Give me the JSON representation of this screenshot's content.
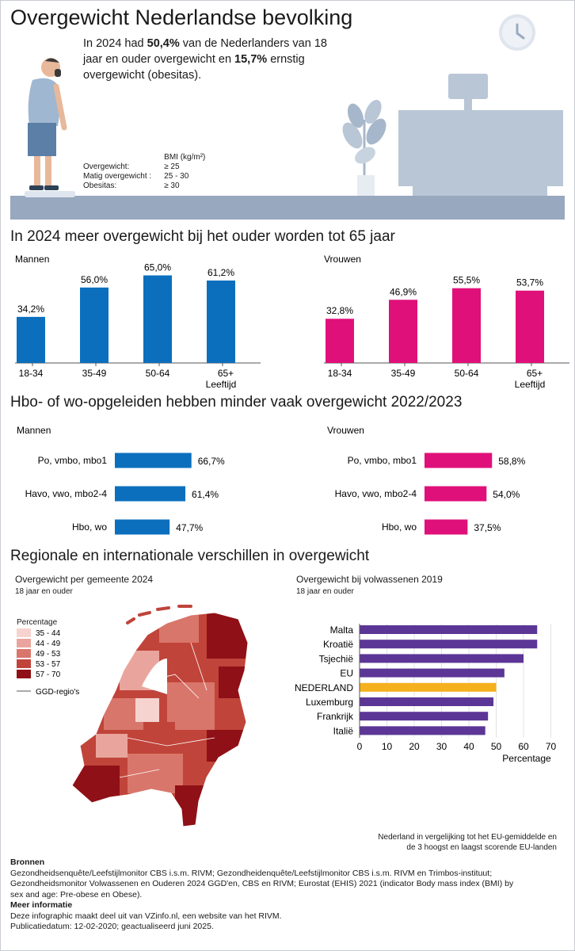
{
  "header": {
    "title": "Overgewicht Nederlandse bevolking",
    "intro_pre": "In 2024 had ",
    "intro_val1": "50,4%",
    "intro_mid": " van de Nederlanders van 18 jaar en ouder overgewicht en ",
    "intro_val2": "15,7%",
    "intro_post": " ernstig overgewicht (obesitas).",
    "bmi_header": "BMI (kg/m²)",
    "bmi_rows": [
      {
        "label": "Overgewicht:",
        "value": "≥ 25"
      },
      {
        "label": "Matig overgewicht :",
        "value": "25 - 30"
      },
      {
        "label": "Obesitas:",
        "value": "≥ 30"
      }
    ]
  },
  "section_age": {
    "title": "In 2024 meer overgewicht bij het ouder worden tot 65 jaar",
    "axis_suffix": "Leeftijd"
  },
  "section_edu": {
    "title": "Hbo- of wo-opgeleiden hebben minder vaak overgewicht 2022/2023"
  },
  "section_region": {
    "title": "Regionale en internationale verschillen in overgewicht",
    "map_title": "Overgewicht per gemeente 2024",
    "map_subtitle": "18 jaar en ouder",
    "legend_title": "Percentage",
    "legend_items": [
      "35 - 44",
      "44 - 49",
      "49 - 53",
      "53 - 57",
      "57 - 70"
    ],
    "legend_colors": [
      "#f6d3cf",
      "#e9a59d",
      "#d9766b",
      "#c0443a",
      "#8f1016"
    ],
    "legend_ggd": "GGD-regio's",
    "eu_title": "Overgewicht bij volwassenen 2019",
    "eu_subtitle": "18 jaar en ouder",
    "eu_note_1": "Nederland in vergelijking tot het EU-gemiddelde en",
    "eu_note_2": "de 3 hoogst en laagst scorende EU-landen"
  },
  "footer": {
    "sources_title": "Bronnen",
    "sources_1": "Gezondheidsenquête/Leefstijlmonitor CBS i.s.m. RIVM; Gezondheidenquête/Leefstijlmonitor CBS i.s.m. RIVM en Trimbos-instituut;",
    "sources_2": "Gezondheidsmonitor Volwassenen en Ouderen 2024 GGD'en, CBS en RIVM; Eurostat (EHIS) 2021 (indicator Body mass index (BMI) by",
    "sources_3": "sex and age: Pre-obese en Obese).",
    "more_title": "Meer informatie",
    "more_1": "Deze infographic maakt deel uit van VZinfo.nl, een website van het RIVM.",
    "more_2": "Publicatiedatum: 12-02-2020; geactualiseerd juni 2025."
  },
  "chart_data": [
    {
      "type": "bar",
      "title": "Mannen",
      "categories": [
        "18-34",
        "35-49",
        "50-64",
        "65+"
      ],
      "values": [
        34.2,
        56.0,
        65.0,
        61.2
      ],
      "labels": [
        "34,2%",
        "56,0%",
        "65,0%",
        "61,2%"
      ],
      "xlabel": "Leeftijd",
      "color": "#0b6fbd"
    },
    {
      "type": "bar",
      "title": "Vrouwen",
      "categories": [
        "18-34",
        "35-49",
        "50-64",
        "65+"
      ],
      "values": [
        32.8,
        46.9,
        55.5,
        53.7
      ],
      "labels": [
        "32,8%",
        "46,9%",
        "55,5%",
        "53,7%"
      ],
      "xlabel": "Leeftijd",
      "color": "#e0107a"
    },
    {
      "type": "bar",
      "orientation": "horizontal",
      "title": "Mannen",
      "categories": [
        "Po, vmbo, mbo1",
        "Havo, vwo, mbo2-4",
        "Hbo, wo"
      ],
      "values": [
        66.7,
        61.4,
        47.7
      ],
      "labels": [
        "66,7%",
        "61,4%",
        "47,7%"
      ],
      "color": "#0b6fbd"
    },
    {
      "type": "bar",
      "orientation": "horizontal",
      "title": "Vrouwen",
      "categories": [
        "Po, vmbo, mbo1",
        "Havo, vwo, mbo2-4",
        "Hbo, wo"
      ],
      "values": [
        58.8,
        54.0,
        37.5
      ],
      "labels": [
        "58,8%",
        "54,0%",
        "37,5%"
      ],
      "color": "#e0107a"
    },
    {
      "type": "bar",
      "orientation": "horizontal",
      "title": "Overgewicht bij volwassenen 2019",
      "categories": [
        "Malta",
        "Kroatië",
        "Tsjechië",
        "EU",
        "NEDERLAND",
        "Luxemburg",
        "Frankrijk",
        "Italië"
      ],
      "values": [
        65,
        65,
        60,
        53,
        50,
        49,
        47,
        46
      ],
      "xlabel": "Percentage",
      "xlim": [
        0,
        70
      ],
      "xticks": [
        0,
        10,
        20,
        30,
        40,
        50,
        60,
        70
      ],
      "colors": {
        "default": "#5c3696",
        "highlight": "#f5b01d"
      },
      "highlight": "NEDERLAND"
    }
  ]
}
